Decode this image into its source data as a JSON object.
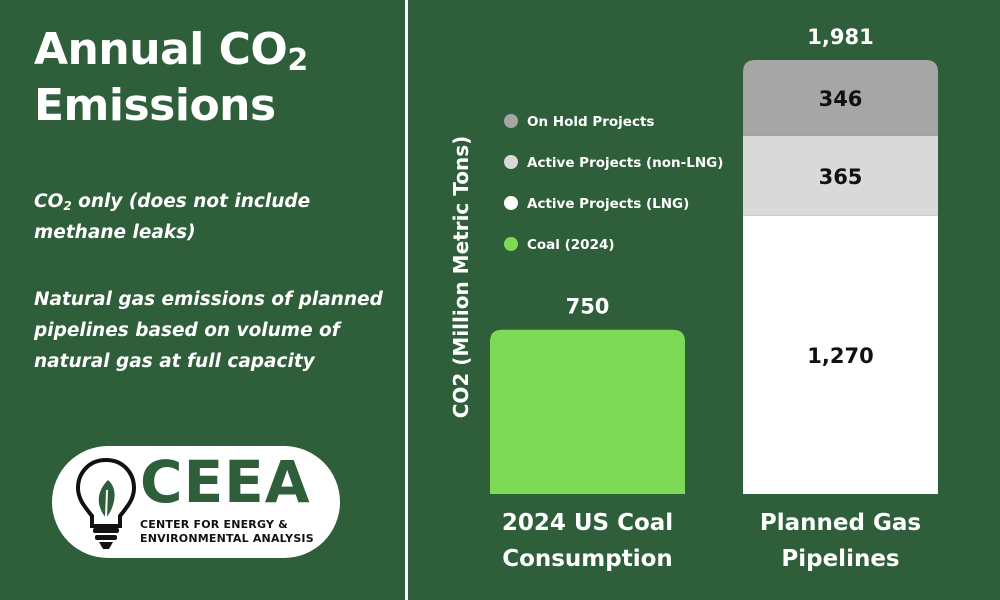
{
  "title": {
    "line1_prefix": "Annual CO",
    "line1_sub": "2",
    "line2": "Emissions"
  },
  "notes": {
    "note1_prefix": "CO",
    "note1_sub": "2",
    "note1_rest": " only (does not include methane leaks)",
    "note2": "Natural gas emissions of planned pipelines based on volume of natural gas at full capacity"
  },
  "logo": {
    "name": "CEEA",
    "subtitle_line1": "CENTER FOR ENERGY &",
    "subtitle_line2": "ENVIRONMENTAL ANALYSIS",
    "icon": "lightbulb-leaf-icon"
  },
  "colors": {
    "background": "#2f5e3a",
    "coal": "#7ed957",
    "active_lng": "#ffffff",
    "active_non_lng": "#d9d9d9",
    "on_hold": "#a6a6a6"
  },
  "chart_data": {
    "type": "bar",
    "ylabel": "CO2 (Million Metric Tons)",
    "ylim": [
      0,
      1981
    ],
    "grid": false,
    "legend_position": "top-left",
    "legend": [
      {
        "label": "On Hold Projects",
        "color": "#a6a6a6"
      },
      {
        "label": "Active Projects (non-LNG)",
        "color": "#d9d9d9"
      },
      {
        "label": "Active Projects (LNG)",
        "color": "#ffffff"
      },
      {
        "label": "Coal (2024)",
        "color": "#7ed957"
      }
    ],
    "bars": [
      {
        "category": [
          "2024 US Coal",
          "Consumption"
        ],
        "total": "750",
        "segments": [
          {
            "name": "Coal (2024)",
            "value": 750,
            "label": "",
            "color": "#7ed957"
          }
        ]
      },
      {
        "category": [
          "Planned Gas",
          "Pipelines"
        ],
        "total": "1,981",
        "segments": [
          {
            "name": "Active Projects (LNG)",
            "value": 1270,
            "label": "1,270",
            "color": "#ffffff"
          },
          {
            "name": "Active Projects (non-LNG)",
            "value": 365,
            "label": "365",
            "color": "#d9d9d9"
          },
          {
            "name": "On Hold Projects",
            "value": 346,
            "label": "346",
            "color": "#a6a6a6"
          }
        ]
      }
    ]
  }
}
